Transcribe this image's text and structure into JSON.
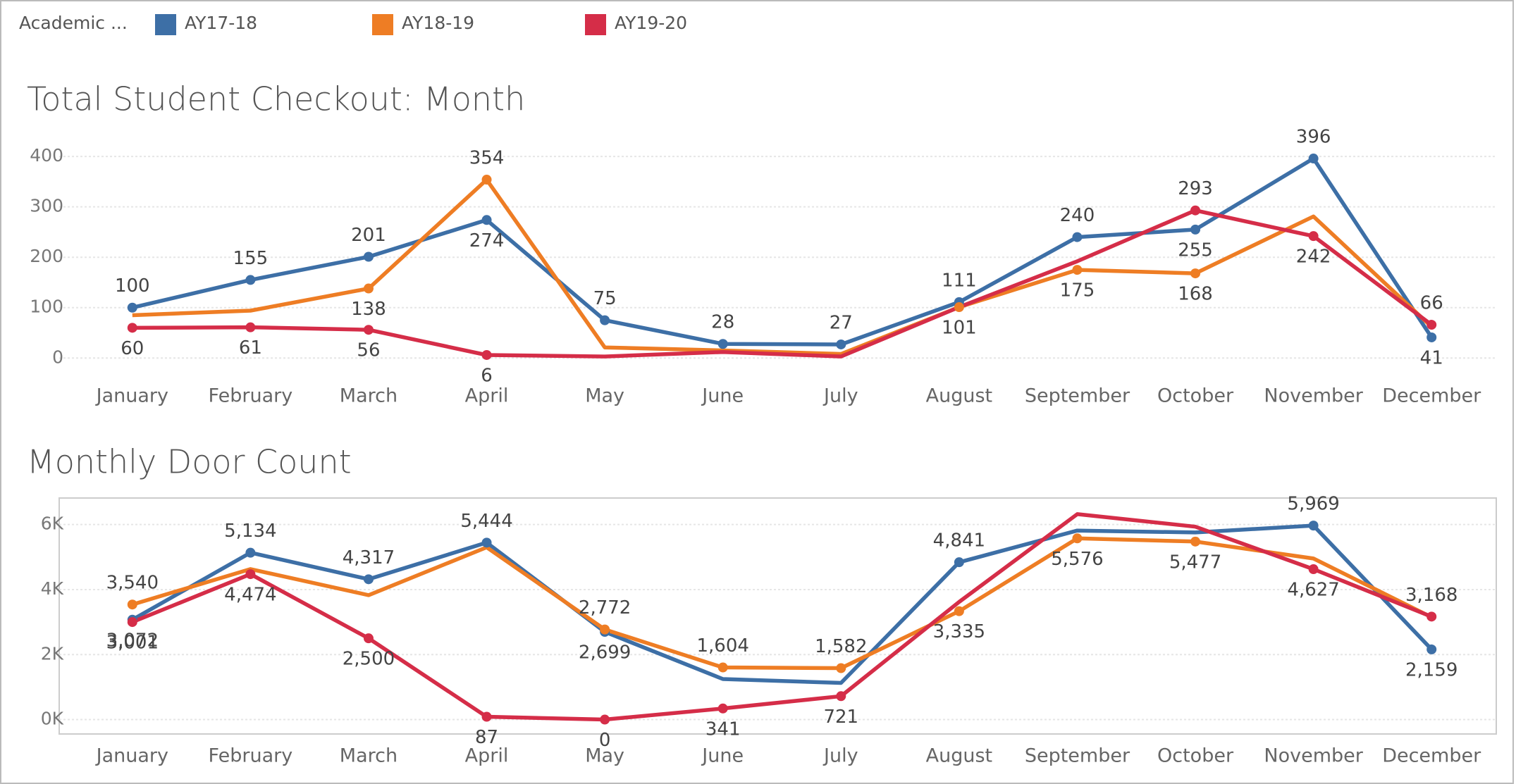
{
  "chart_data": [
    {
      "type": "line",
      "title": "Total Student Checkout: Month",
      "legend_title": "Academic ...",
      "categories": [
        "January",
        "February",
        "March",
        "April",
        "May",
        "June",
        "July",
        "August",
        "September",
        "October",
        "November",
        "December"
      ],
      "ylim": [
        -15,
        410
      ],
      "yticks": [
        0,
        100,
        200,
        300,
        400
      ],
      "grid": true,
      "legend": "top-left",
      "series": [
        {
          "name": "AY17-18",
          "color": "#3d6fa6",
          "values": [
            100,
            155,
            201,
            274,
            75,
            28,
            27,
            111,
            240,
            255,
            396,
            41
          ],
          "value_labels": [
            "100",
            "155",
            "201",
            "274",
            "75",
            "28",
            "27",
            "111",
            "240",
            "255",
            "396",
            "41"
          ]
        },
        {
          "name": "AY18-19",
          "color": "#ee7d24",
          "values": [
            85,
            94,
            138,
            354,
            21,
            15,
            8,
            101,
            175,
            168,
            281,
            62
          ],
          "value_labels": [
            null,
            null,
            "138",
            "354",
            null,
            null,
            null,
            "101",
            "175",
            "168",
            null,
            null
          ]
        },
        {
          "name": "AY19-20",
          "color": "#d52d48",
          "values": [
            60,
            61,
            56,
            6,
            3,
            12,
            3,
            101,
            192,
            293,
            242,
            66
          ],
          "value_labels": [
            "60",
            "61",
            "56",
            "6",
            null,
            null,
            null,
            null,
            null,
            "293",
            "242",
            "66"
          ]
        }
      ]
    },
    {
      "type": "line",
      "title": "Monthly Door Count",
      "categories": [
        "January",
        "February",
        "March",
        "April",
        "May",
        "June",
        "July",
        "August",
        "September",
        "October",
        "November",
        "December"
      ],
      "ylim": [
        -400,
        6600
      ],
      "yticks": [
        {
          "value": 0,
          "label": "0K"
        },
        {
          "value": 2000,
          "label": "2K"
        },
        {
          "value": 4000,
          "label": "4K"
        },
        {
          "value": 6000,
          "label": "6K"
        }
      ],
      "grid": true,
      "series": [
        {
          "name": "AY17-18",
          "color": "#3d6fa6",
          "values": [
            3072,
            5134,
            4317,
            5444,
            2699,
            1246,
            1128,
            4841,
            5816,
            5756,
            5969,
            2159
          ],
          "value_labels": [
            "3,072",
            "5,134",
            "4,317",
            "5,444",
            "2,699",
            null,
            null,
            "4,841",
            null,
            null,
            "5,969",
            "2,159"
          ]
        },
        {
          "name": "AY18-19",
          "color": "#ee7d24",
          "values": [
            3540,
            4629,
            3828,
            5300,
            2772,
            1604,
            1582,
            3335,
            5576,
            5477,
            4955,
            3150
          ],
          "value_labels": [
            "3,540",
            null,
            null,
            null,
            "2,772",
            "1,604",
            "1,582",
            "3,335",
            "5,576",
            "5,477",
            null,
            null
          ]
        },
        {
          "name": "AY19-20",
          "color": "#d52d48",
          "values": [
            3001,
            4474,
            2500,
            87,
            0,
            341,
            721,
            3620,
            6320,
            5935,
            4627,
            3168
          ],
          "value_labels": [
            "3,001",
            "4,474",
            "2,500",
            "87",
            "0",
            "341",
            "721",
            null,
            null,
            null,
            "4,627",
            "3,168"
          ]
        }
      ]
    }
  ]
}
